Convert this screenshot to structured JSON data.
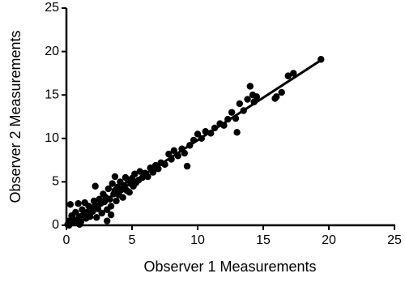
{
  "chart_data": {
    "type": "scatter",
    "x_label": "Observer 1 Measurements",
    "y_label": "Observer 2 Measurements",
    "color": "#000000",
    "xlim": [
      0,
      25
    ],
    "ylim": [
      0,
      25
    ],
    "xticks": [
      0,
      5,
      10,
      15,
      20,
      25
    ],
    "yticks": [
      0,
      5,
      10,
      15,
      20,
      25
    ],
    "x": [
      0.1,
      0.2,
      0.3,
      0.5,
      0.4,
      0.6,
      0.8,
      0.7,
      0.9,
      1.0,
      1.1,
      1.2,
      1.3,
      1.4,
      1.5,
      1.6,
      1.7,
      1.8,
      1.9,
      2.0,
      2.1,
      2.2,
      2.3,
      2.4,
      2.5,
      2.6,
      2.7,
      2.8,
      2.9,
      3.0,
      3.1,
      3.2,
      3.3,
      3.4,
      3.5,
      3.6,
      3.7,
      3.8,
      3.9,
      4.0,
      4.1,
      4.2,
      4.3,
      4.4,
      4.5,
      4.6,
      4.7,
      4.8,
      4.9,
      5.0,
      5.1,
      5.2,
      5.3,
      5.5,
      5.6,
      5.8,
      6.0,
      6.2,
      6.4,
      6.6,
      6.8,
      7.0,
      7.2,
      7.5,
      7.8,
      8.0,
      8.2,
      8.5,
      8.8,
      9.0,
      9.2,
      9.4,
      9.7,
      10.0,
      10.3,
      10.6,
      11.0,
      11.3,
      11.7,
      12.0,
      12.3,
      12.6,
      12.9,
      13.0,
      13.2,
      13.5,
      13.8,
      14.0,
      14.2,
      14.3,
      14.5,
      15.9,
      16.0,
      16.4,
      16.9,
      17.3,
      19.4,
      3.1,
      3.4,
      0.3,
      2.2,
      3.7,
      1.0,
      0.2
    ],
    "values": [
      0.1,
      0.5,
      0.2,
      0.8,
      1.1,
      0.3,
      0.6,
      1.5,
      2.5,
      1.0,
      0.4,
      1.8,
      1.2,
      2.6,
      0.8,
      1.5,
      2.2,
      1.0,
      2.0,
      1.6,
      2.8,
      2.3,
      0.9,
      1.9,
      3.0,
      2.5,
      1.4,
      3.6,
      2.7,
      3.2,
      1.8,
      4.2,
      3.0,
      2.2,
      4.8,
      3.6,
      4.0,
      2.8,
      4.4,
      3.5,
      5.0,
      4.1,
      3.2,
      4.6,
      5.5,
      4.0,
      5.2,
      3.8,
      4.8,
      5.4,
      4.5,
      5.9,
      4.9,
      5.2,
      6.2,
      5.5,
      6.0,
      5.6,
      6.6,
      6.1,
      6.9,
      6.5,
      7.2,
      7.0,
      8.2,
      7.6,
      8.6,
      8.0,
      8.8,
      8.3,
      6.8,
      9.2,
      9.8,
      10.5,
      10.0,
      10.8,
      10.6,
      11.2,
      11.7,
      11.5,
      12.2,
      13.0,
      12.3,
      10.7,
      14.0,
      13.2,
      14.5,
      16.0,
      15.0,
      14.2,
      14.8,
      14.6,
      14.8,
      15.3,
      17.2,
      17.5,
      19.1,
      0.5,
      1.2,
      2.4,
      4.5,
      5.6,
      0.1,
      0.0
    ],
    "fit_line": {
      "x": [
        0,
        19.5
      ],
      "y": [
        0,
        19.1
      ]
    }
  }
}
